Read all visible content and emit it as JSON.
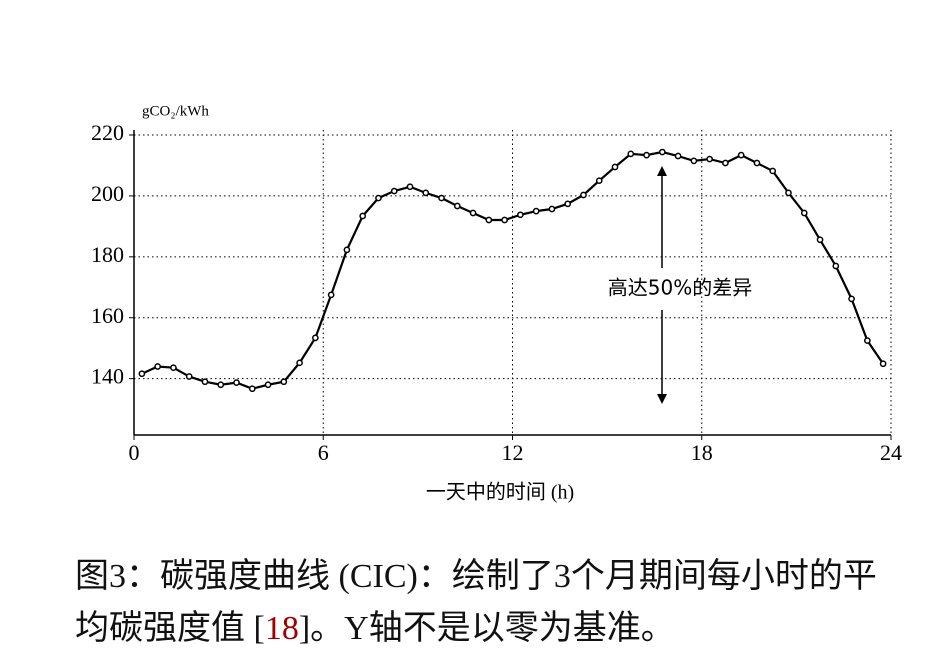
{
  "chart_data": {
    "type": "line",
    "y_unit_label": "gCO₂/kWh",
    "xlabel": "一天中的时间 (h)",
    "annotation": "高达50%的差异",
    "x": [
      0.25,
      0.75,
      1.25,
      1.75,
      2.25,
      2.75,
      3.25,
      3.75,
      4.25,
      4.75,
      5.25,
      5.75,
      6.25,
      6.75,
      7.25,
      7.75,
      8.25,
      8.75,
      9.25,
      9.75,
      10.25,
      10.75,
      11.25,
      11.75,
      12.25,
      12.75,
      13.25,
      13.75,
      14.25,
      14.75,
      15.25,
      15.75,
      16.25,
      16.75,
      17.25,
      17.75,
      18.25,
      18.75,
      19.25,
      19.75,
      20.25,
      20.75,
      21.25,
      21.75,
      22.25,
      22.75,
      23.25,
      23.75
    ],
    "series": [
      {
        "color": "#000000",
        "values": [
          141.6,
          144,
          143.6,
          140.7,
          139,
          138,
          138.7,
          136.7,
          138,
          139,
          145.2,
          153.4,
          167.5,
          182.3,
          193.4,
          199.3,
          201.6,
          203,
          201,
          199.3,
          196.7,
          194.4,
          192.1,
          192.1,
          193.8,
          195,
          195.7,
          197.4,
          200.3,
          205,
          209.5,
          213.8,
          213.4,
          214.4,
          213.1,
          211.5,
          212.1,
          210.8,
          213.4,
          210.8,
          208.2,
          201,
          194.4,
          185.6,
          177,
          166.2,
          152.5,
          144.9
        ]
      }
    ],
    "xlim": [
      0,
      24
    ],
    "xticks": [
      0,
      6,
      12,
      18,
      24
    ],
    "ylim": [
      121.5,
      220
    ],
    "yticks": [
      140,
      160,
      180,
      200,
      220
    ],
    "grid": true
  },
  "caption": {
    "line1": "图3：碳强度曲线 (CIC)：绘制了3个月期间每小时的平",
    "line2_start": "均碳强度值 [",
    "ref": "18",
    "line2_end": "]。Y轴不是以零为基准。"
  }
}
